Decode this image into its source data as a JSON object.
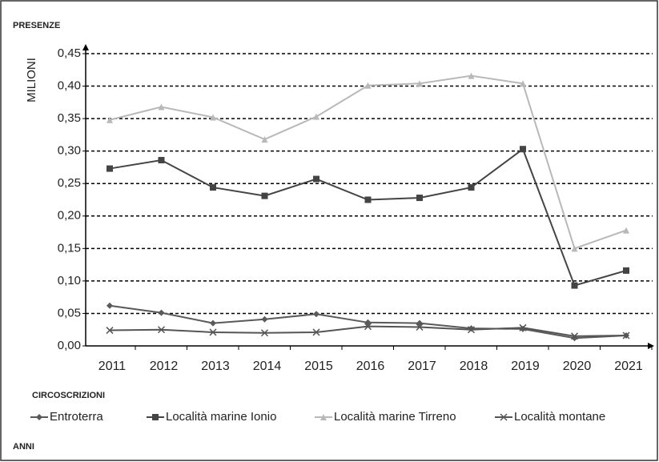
{
  "chart_data": {
    "type": "line",
    "y_title": "PRESENZE",
    "y_label": "MILIONI",
    "legend_title": "CIRCOSCRIZIONI",
    "x_label": "ANNI",
    "categories": [
      "2011",
      "2012",
      "2013",
      "2014",
      "2015",
      "2016",
      "2017",
      "2018",
      "2019",
      "2020",
      "2021"
    ],
    "series": [
      {
        "name": "Entroterra",
        "color": "#5a5a5a",
        "marker": "diamond",
        "values": [
          0.062,
          0.051,
          0.035,
          0.041,
          0.049,
          0.036,
          0.035,
          0.027,
          0.026,
          0.012,
          0.016
        ]
      },
      {
        "name": "Località marine Ionio",
        "color": "#444444",
        "marker": "square",
        "values": [
          0.273,
          0.286,
          0.244,
          0.231,
          0.257,
          0.225,
          0.228,
          0.244,
          0.303,
          0.093,
          0.116
        ]
      },
      {
        "name": "Località marine Tirreno",
        "color": "#b8b8b8",
        "marker": "triangle",
        "values": [
          0.348,
          0.368,
          0.352,
          0.318,
          0.353,
          0.401,
          0.404,
          0.416,
          0.404,
          0.15,
          0.178
        ]
      },
      {
        "name": "Località montane",
        "color": "#555555",
        "marker": "cross",
        "values": [
          0.024,
          0.025,
          0.021,
          0.02,
          0.021,
          0.03,
          0.029,
          0.025,
          0.028,
          0.015,
          0.016
        ]
      }
    ],
    "ylim": [
      0,
      0.45
    ],
    "yticks": [
      {
        "value": 0,
        "label": "0,00"
      },
      {
        "value": 0.05,
        "label": "0,05"
      },
      {
        "value": 0.1,
        "label": "0,10"
      },
      {
        "value": 0.15,
        "label": "0,15"
      },
      {
        "value": 0.2,
        "label": "0,20"
      },
      {
        "value": 0.25,
        "label": "0,25"
      },
      {
        "value": 0.3,
        "label": "0,30"
      },
      {
        "value": 0.35,
        "label": "0,35"
      },
      {
        "value": 0.4,
        "label": "0,40"
      },
      {
        "value": 0.45,
        "label": "0,45"
      }
    ],
    "grid": true
  }
}
